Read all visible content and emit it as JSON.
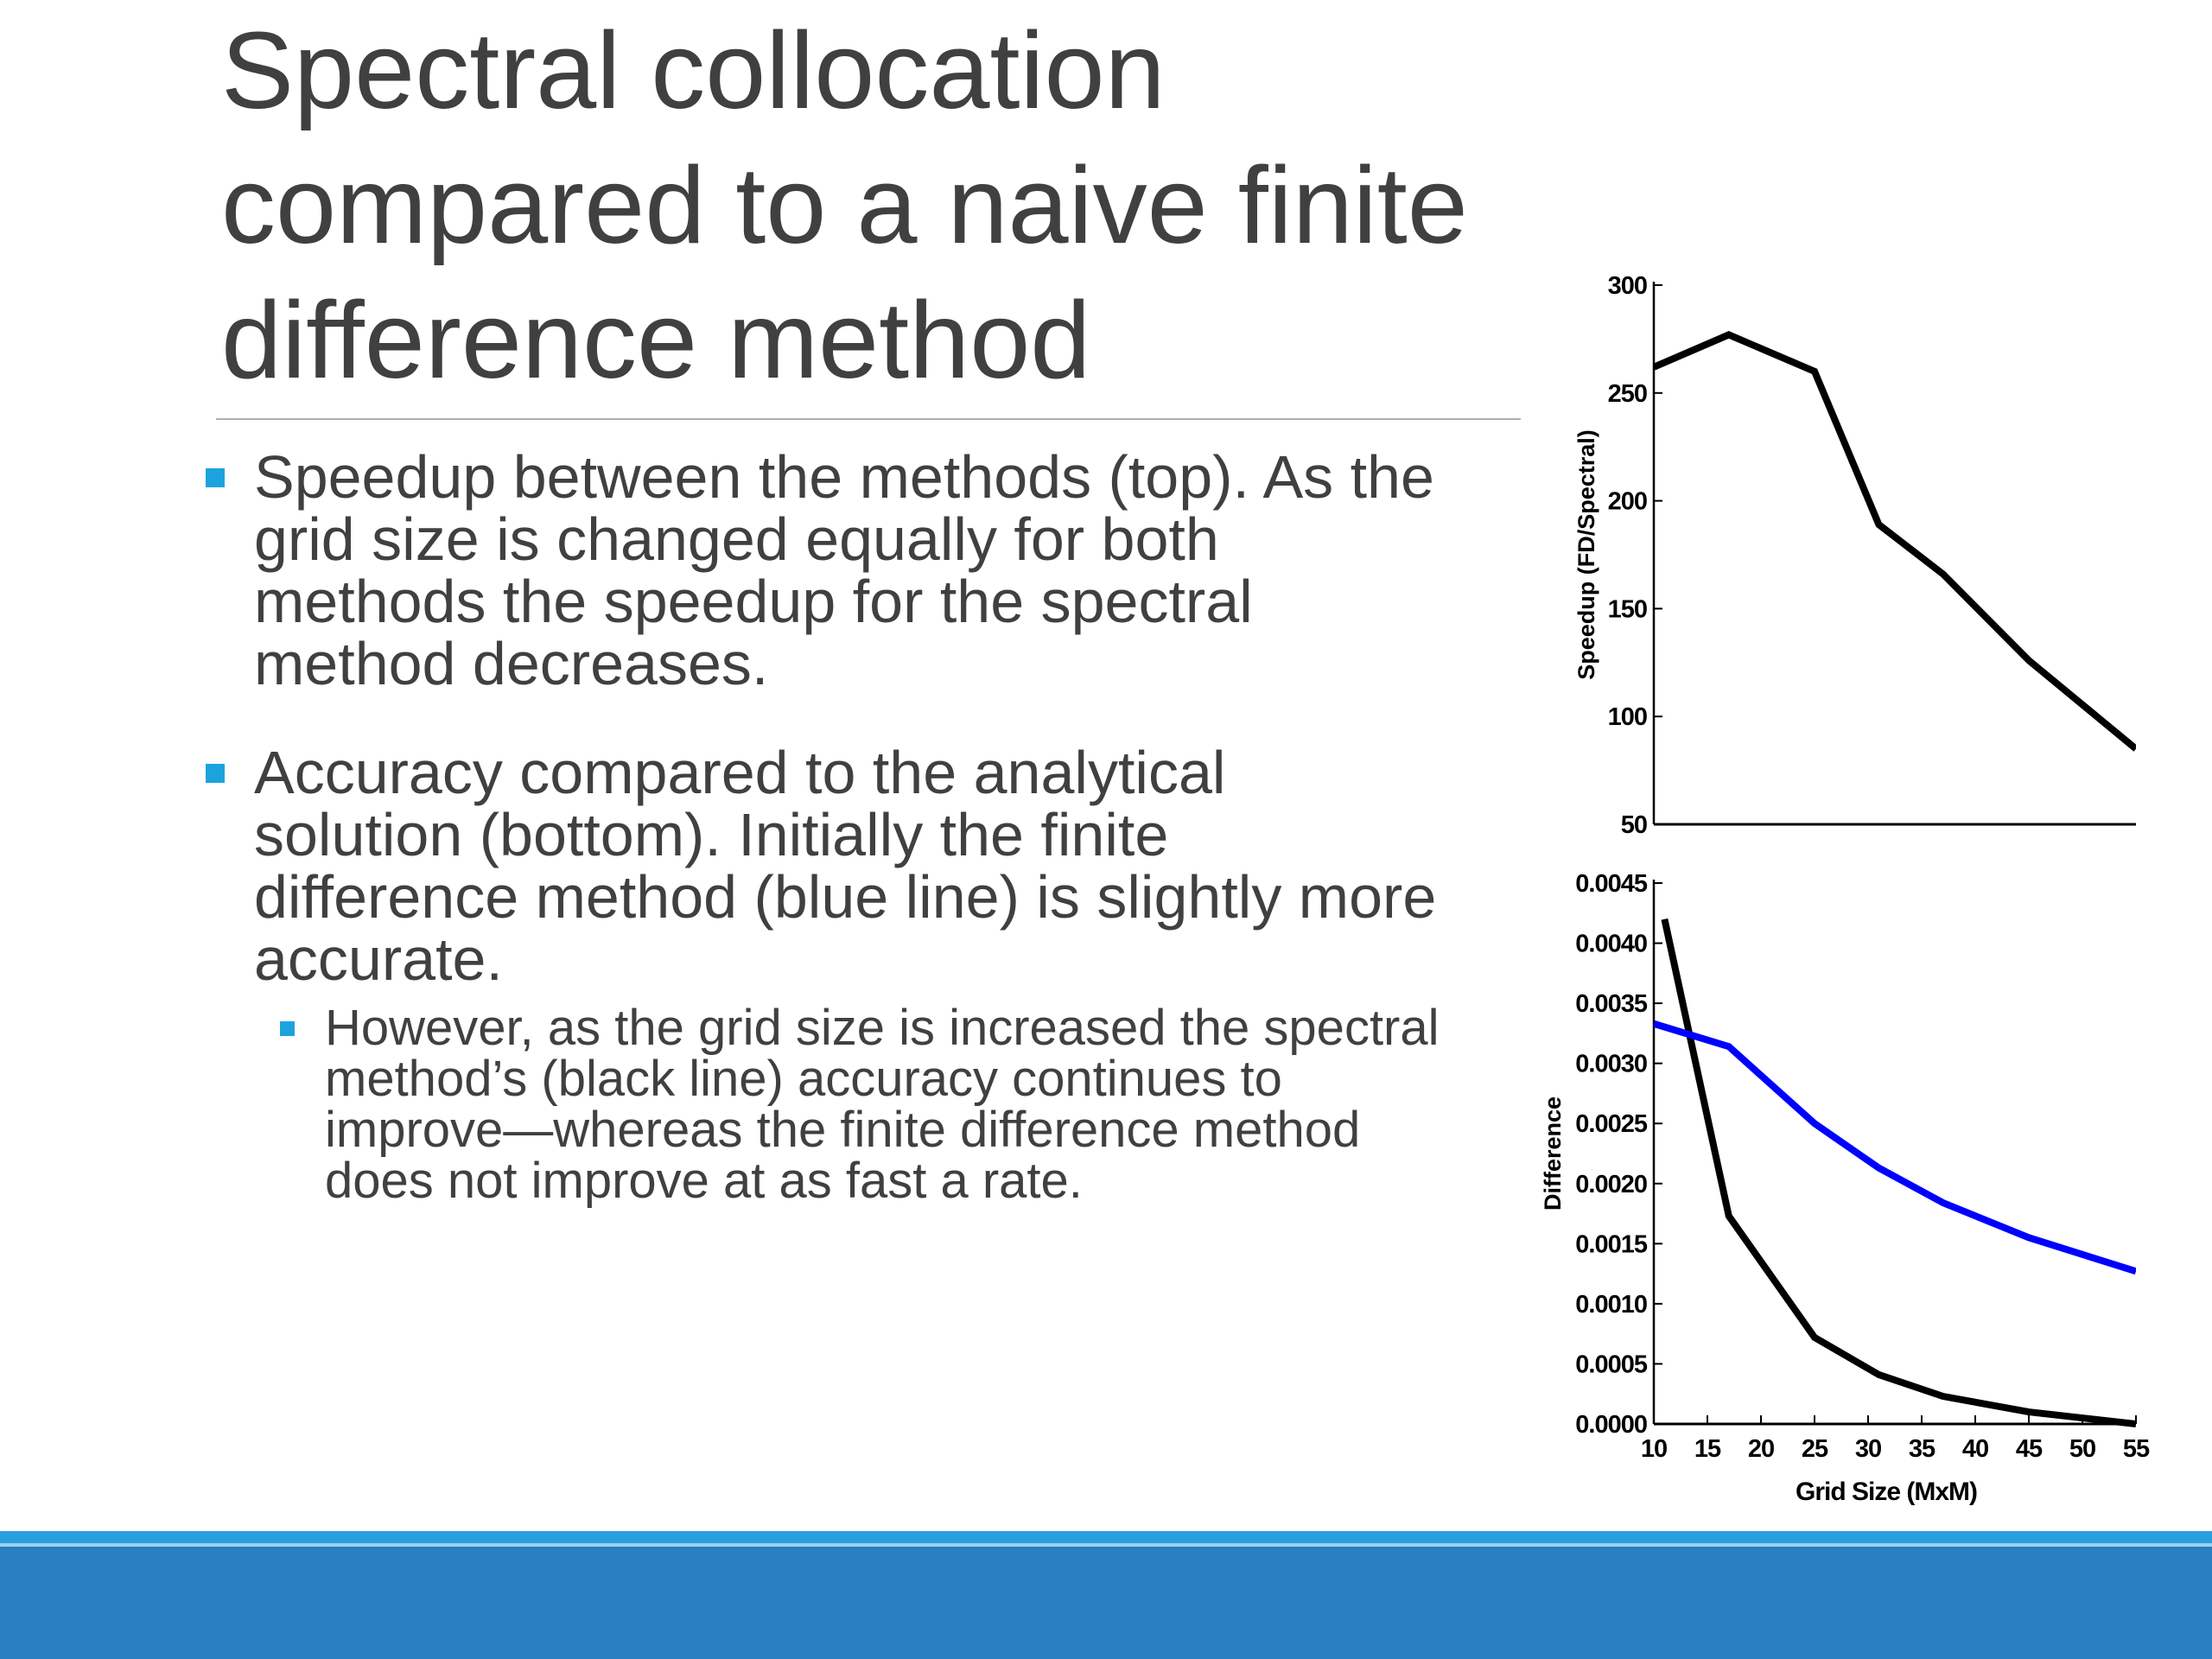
{
  "slide": {
    "title_lines": [
      "Spectral collocation",
      "compared to a naive finite",
      "difference method"
    ],
    "bullets": [
      "Speedup between the methods (top). As the grid size is changed equally for both methods the speedup for the spectral method decreases.",
      "Accuracy compared to the analytical solution (bottom). Initially the finite difference method (blue line) is slightly more accurate."
    ],
    "sub_bullet": "However, as the grid size is increased the spectral method’s (black line) accuracy continues to improve—whereas the finite difference method does not improve at as fast a rate."
  },
  "colors": {
    "accent": "#1ca3de",
    "footer": "#2a7fc2",
    "spectral_line": "#000000",
    "fd_line": "#0000ff"
  },
  "chart_data": [
    {
      "type": "line",
      "title": "",
      "xlabel": "",
      "ylabel": "Speedup (FD/Spectral)",
      "xlim": [
        10,
        55
      ],
      "ylim": [
        50,
        300
      ],
      "y_ticks": [
        50,
        100,
        150,
        200,
        250,
        300
      ],
      "grid": false,
      "series": [
        {
          "color": "#000000",
          "x": [
            10,
            17,
            25,
            31,
            37,
            45,
            55
          ],
          "y": [
            262,
            277,
            260,
            189,
            166,
            126,
            85
          ]
        }
      ]
    },
    {
      "type": "line",
      "title": "",
      "xlabel": "Grid Size (MxM)",
      "ylabel": "Difference",
      "xlim": [
        10,
        55
      ],
      "ylim": [
        0,
        0.0045
      ],
      "x_ticks": [
        10,
        15,
        20,
        25,
        30,
        35,
        40,
        45,
        50,
        55
      ],
      "y_ticks": [
        "0.0000",
        "0.0005",
        "0.0010",
        "0.0015",
        "0.0020",
        "0.0025",
        "0.0030",
        "0.0035",
        "0.0040",
        "0.0045"
      ],
      "grid": false,
      "series": [
        {
          "color": "#000000",
          "x": [
            11,
            17,
            25,
            31,
            37,
            45,
            55
          ],
          "y": [
            0.0042,
            0.00173,
            0.00072,
            0.00041,
            0.00023,
            0.0001,
            0.0
          ]
        },
        {
          "color": "#0000ff",
          "x": [
            10,
            17,
            25,
            31,
            37,
            45,
            55
          ],
          "y": [
            0.00333,
            0.00314,
            0.0025,
            0.00213,
            0.00184,
            0.00155,
            0.00127
          ]
        }
      ]
    }
  ]
}
